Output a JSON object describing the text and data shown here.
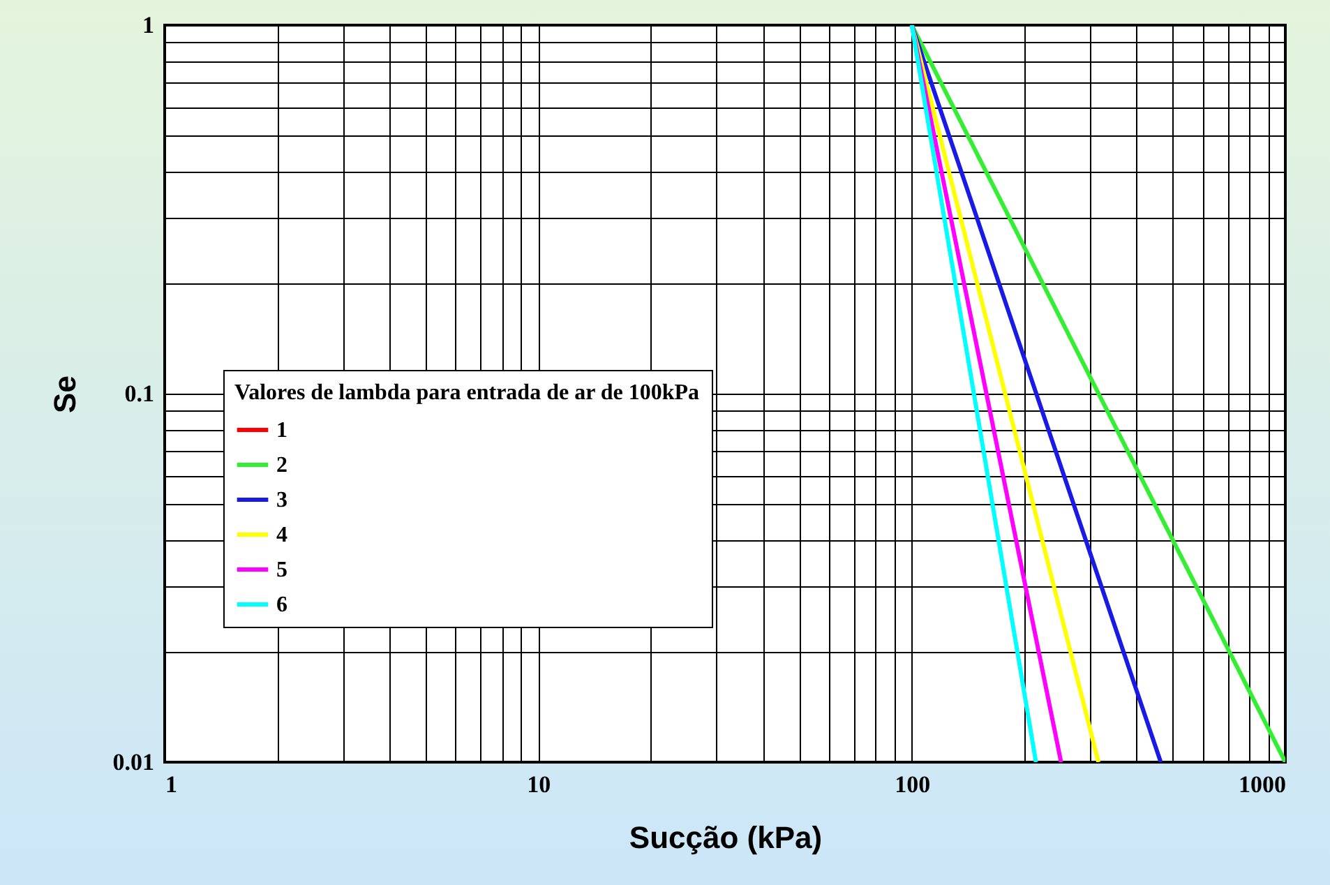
{
  "chart_data": {
    "type": "line",
    "xlabel": "Sucção (kPa)",
    "ylabel": "Se",
    "legend_title": "Valores de lambda para entrada de ar de 100kPa",
    "log": "xy",
    "grid": true,
    "legend": "bottom left",
    "xlim": [
      1,
      1000
    ],
    "ylim": [
      0.01,
      1
    ],
    "xticks": [
      1,
      {
        "value": 2,
        "label": null
      },
      {
        "value": 3,
        "label": null
      },
      {
        "value": 4,
        "label": null
      },
      {
        "value": 5,
        "label": null
      },
      {
        "value": 6,
        "label": null
      },
      {
        "value": 7,
        "label": null
      },
      {
        "value": 8,
        "label": null
      },
      {
        "value": 9,
        "label": null
      },
      10,
      {
        "value": 20,
        "label": null
      },
      {
        "value": 30,
        "label": null
      },
      {
        "value": 40,
        "label": null
      },
      {
        "value": 50,
        "label": null
      },
      {
        "value": 60,
        "label": null
      },
      {
        "value": 70,
        "label": null
      },
      {
        "value": 80,
        "label": null
      },
      {
        "value": 90,
        "label": null
      },
      100,
      {
        "value": 200,
        "label": null
      },
      {
        "value": 300,
        "label": null
      },
      {
        "value": 400,
        "label": null
      },
      {
        "value": 500,
        "label": null
      },
      {
        "value": 600,
        "label": null
      },
      {
        "value": 700,
        "label": null
      },
      {
        "value": 800,
        "label": null
      },
      {
        "value": 900,
        "label": null
      },
      1000
    ],
    "yticks": [
      0.01,
      {
        "value": 0.02,
        "label": null
      },
      {
        "value": 0.03,
        "label": null
      },
      {
        "value": 0.04,
        "label": null
      },
      {
        "value": 0.05,
        "label": null
      },
      {
        "value": 0.06,
        "label": null
      },
      {
        "value": 0.07,
        "label": null
      },
      {
        "value": 0.08,
        "label": null
      },
      {
        "value": 0.09,
        "label": null
      },
      0.1,
      {
        "value": 0.2,
        "label": null
      },
      {
        "value": 0.3,
        "label": null
      },
      {
        "value": 0.4,
        "label": null
      },
      {
        "value": 0.5,
        "label": null
      },
      {
        "value": 0.6,
        "label": null
      },
      {
        "value": 0.7,
        "label": null
      },
      {
        "value": 0.8,
        "label": null
      },
      {
        "value": 0.9,
        "label": null
      },
      1
    ],
    "series": [
      {
        "name": "1",
        "color": "#ff0000"
      },
      {
        "name": "2",
        "color": "#33ee33",
        "x": [
          100,
          1000
        ],
        "values": [
          1,
          0.01
        ]
      },
      {
        "name": "3",
        "color": "#1a1ae6",
        "x": [
          100,
          464
        ],
        "values": [
          1,
          0.01
        ]
      },
      {
        "name": "4",
        "color": "#ffff00",
        "x": [
          100,
          316
        ],
        "values": [
          1,
          0.01
        ]
      },
      {
        "name": "5",
        "color": "#ff00ff",
        "x": [
          100,
          251
        ],
        "values": [
          1,
          0.01
        ]
      },
      {
        "name": "6",
        "color": "#00ffff",
        "x": [
          100,
          215
        ],
        "values": [
          1,
          0.01
        ]
      }
    ]
  }
}
